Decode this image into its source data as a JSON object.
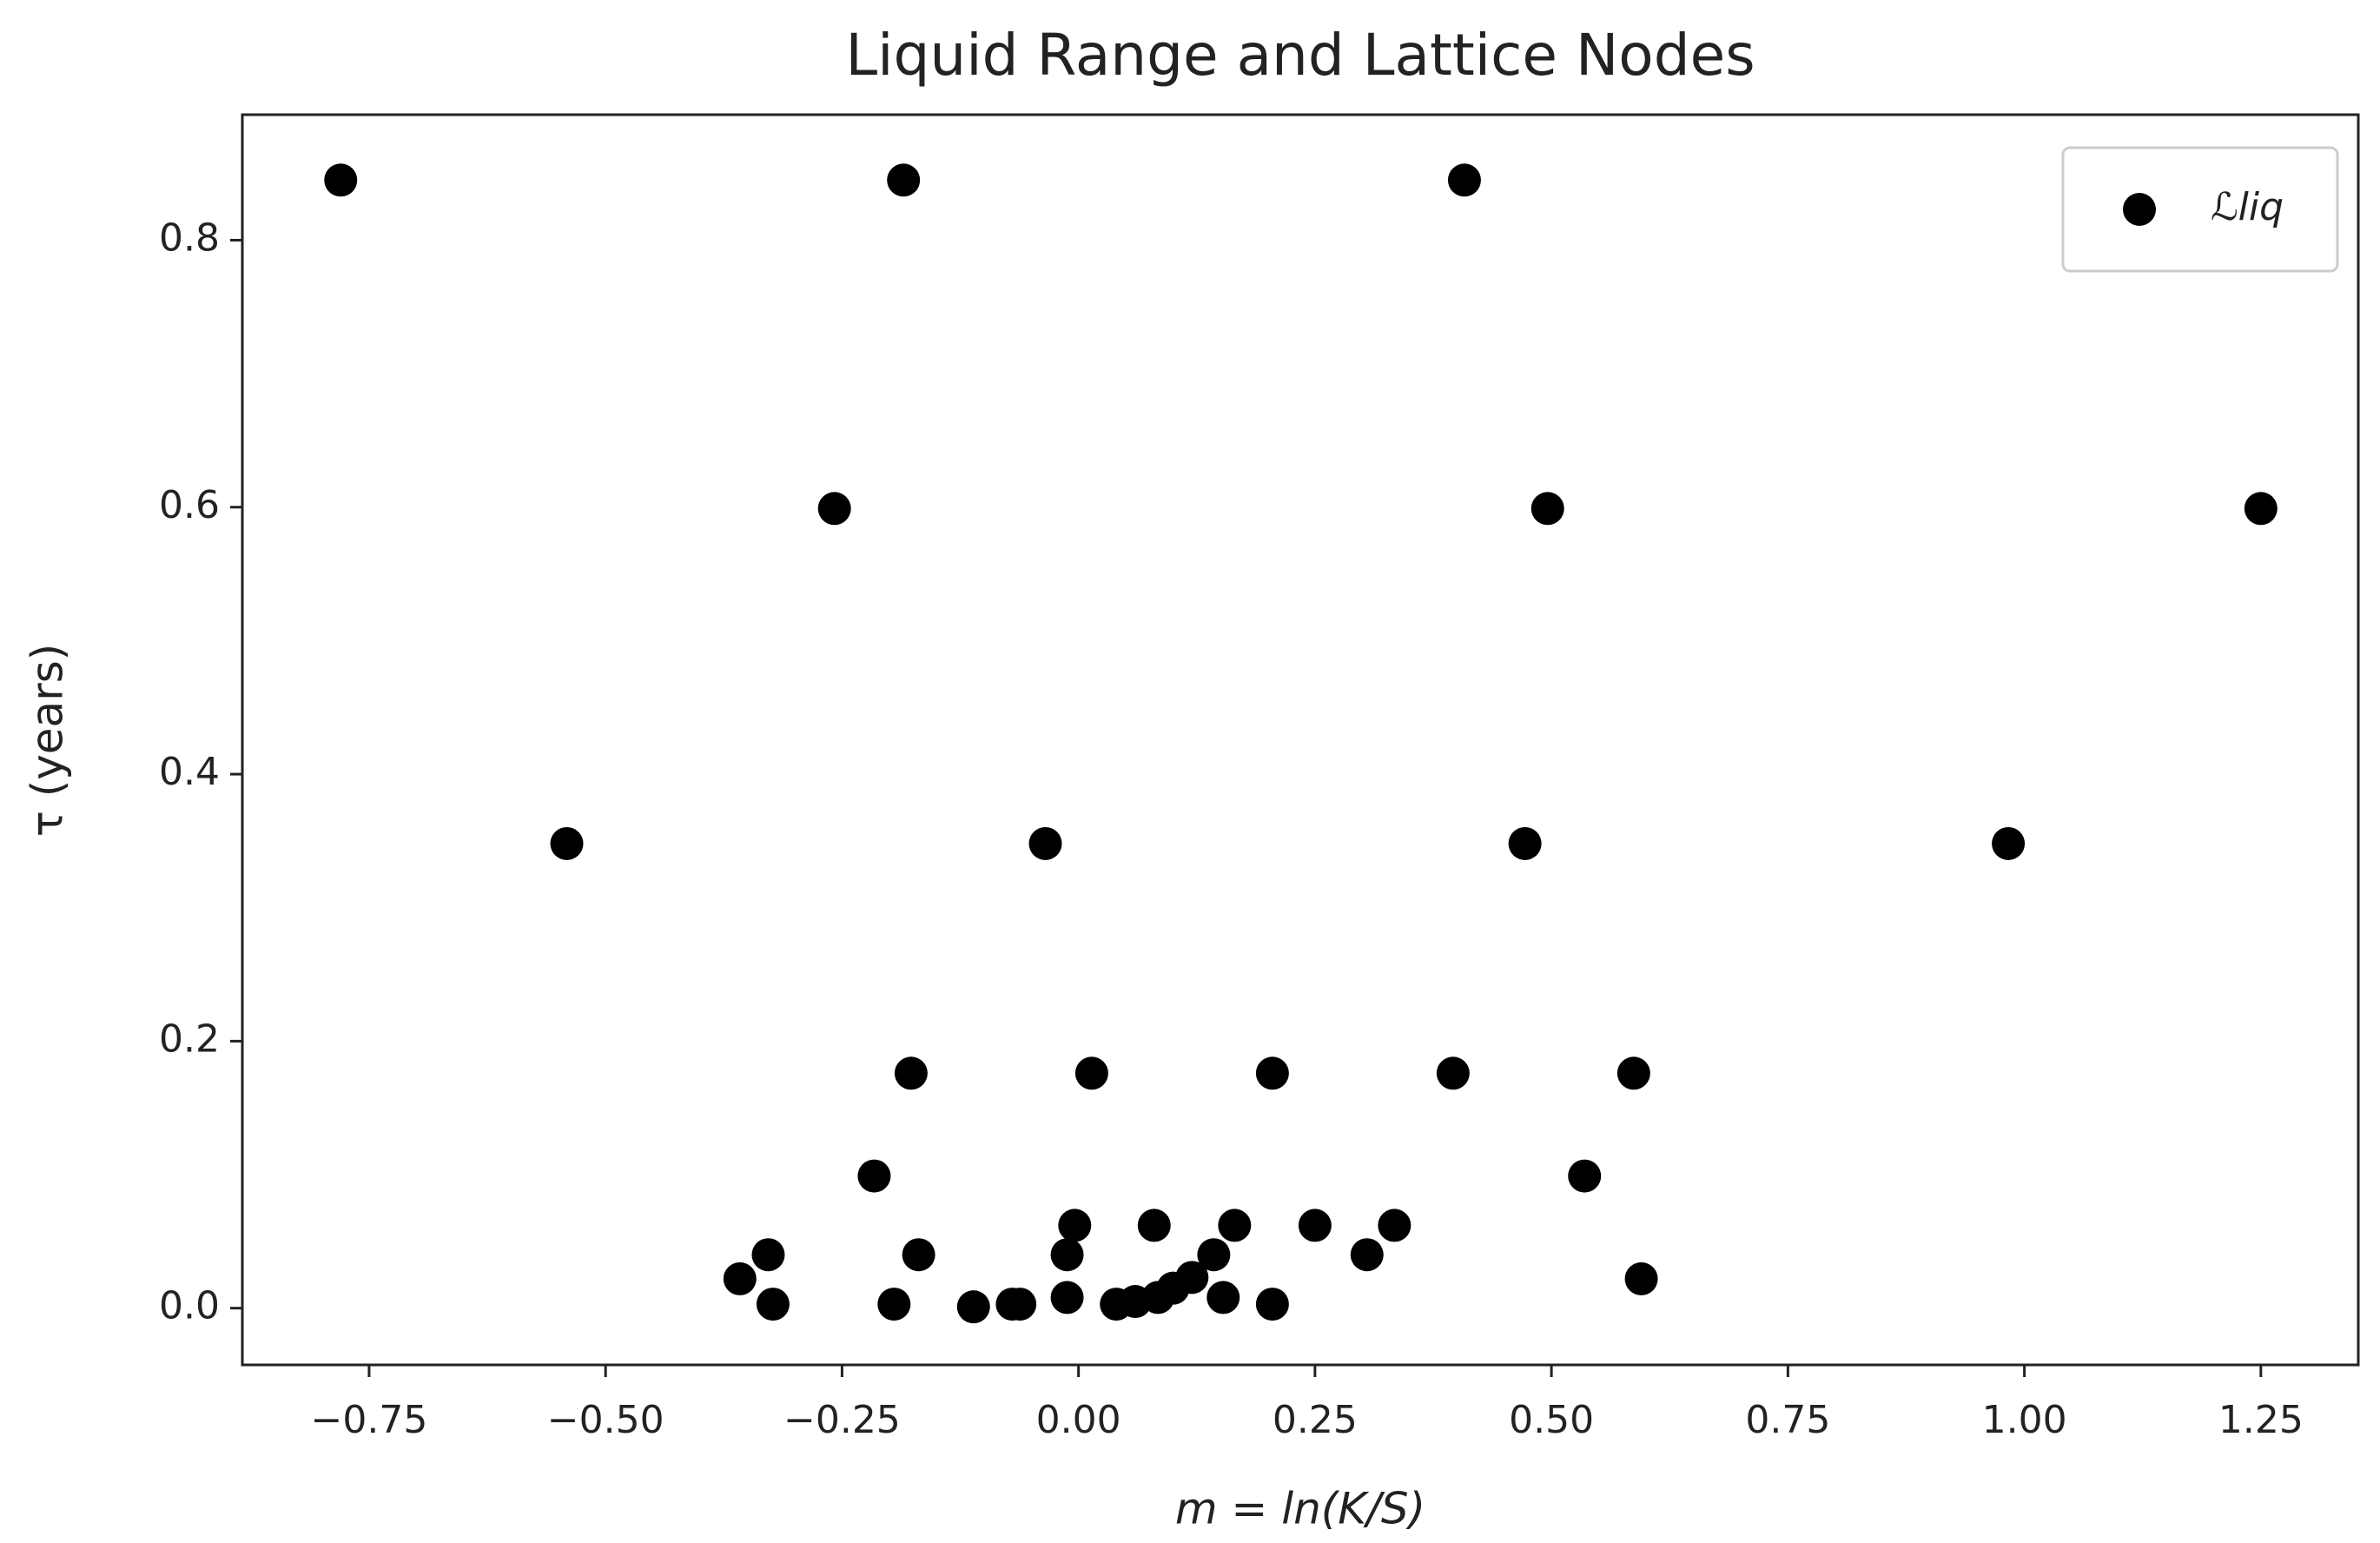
{
  "chart_data": {
    "type": "scatter",
    "title": "Liquid Range and Lattice Nodes",
    "x_label": "m = ln(K/S)",
    "y_label": "τ (years)",
    "series": [
      {
        "name": "ℒliq",
        "color": "#000000",
        "x": [
          -0.78,
          -0.185,
          0.408,
          -0.258,
          0.496,
          1.25,
          -0.541,
          -0.035,
          0.472,
          0.983,
          -0.177,
          0.014,
          0.205,
          0.396,
          0.587,
          -0.216,
          0.535,
          -0.004,
          0.08,
          0.165,
          0.25,
          0.334,
          -0.328,
          -0.169,
          -0.012,
          0.143,
          0.305,
          -0.358,
          0.595,
          -0.323,
          -0.195,
          -0.111,
          -0.07,
          -0.062,
          -0.012,
          0.04,
          0.06,
          0.084,
          0.1,
          0.12,
          0.153,
          0.205
        ],
        "values": [
          0.845,
          0.845,
          0.845,
          0.599,
          0.599,
          0.599,
          0.348,
          0.348,
          0.348,
          0.348,
          0.176,
          0.176,
          0.176,
          0.176,
          0.176,
          0.099,
          0.099,
          0.062,
          0.062,
          0.062,
          0.062,
          0.062,
          0.04,
          0.04,
          0.04,
          0.04,
          0.04,
          0.022,
          0.022,
          0.003,
          0.003,
          0.001,
          0.003,
          0.003,
          0.008,
          0.003,
          0.005,
          0.008,
          0.015,
          0.023,
          0.008,
          0.003
        ]
      }
    ],
    "xlim": [
      -0.884,
      1.353
    ],
    "ylim": [
      -0.0425,
      0.894
    ],
    "xticks": [
      {
        "value": -0.75,
        "label": "−0.75"
      },
      {
        "value": -0.5,
        "label": "−0.50"
      },
      {
        "value": -0.25,
        "label": "−0.25"
      },
      {
        "value": 0,
        "label": "0.00"
      },
      0.25,
      {
        "value": 0.5,
        "label": "0.50"
      },
      0.75,
      {
        "value": 1,
        "label": "1.00"
      },
      1.25
    ],
    "yticks": [
      {
        "value": 0,
        "label": "0.0"
      },
      0.2,
      0.4,
      0.6,
      0.8
    ],
    "grid": false,
    "legend": "upper right"
  }
}
